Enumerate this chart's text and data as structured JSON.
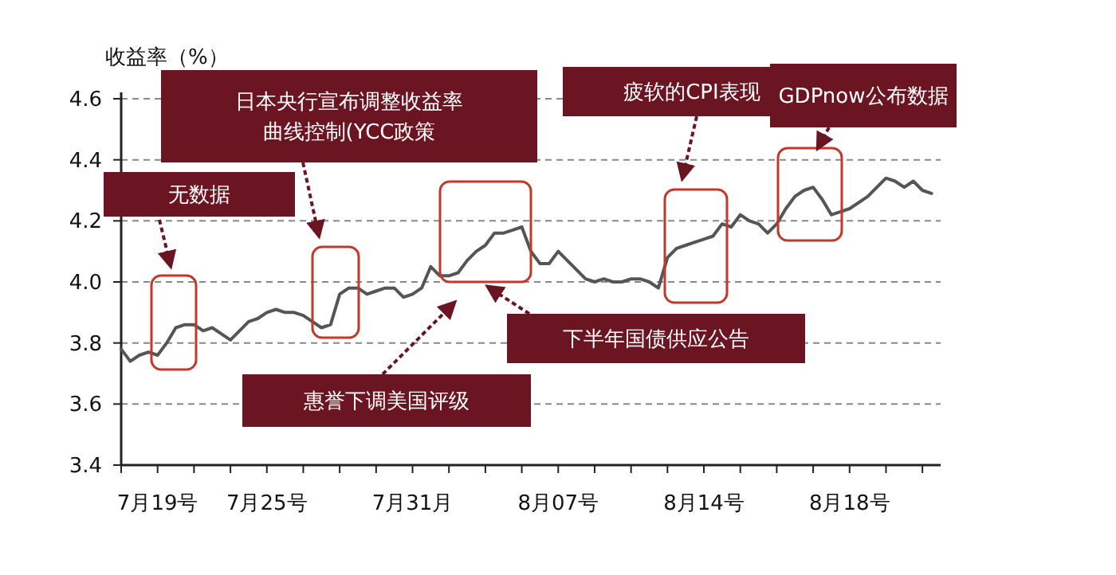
{
  "chart_data": {
    "type": "line",
    "ylabel": "收益率（%）",
    "categories": [
      null,
      null,
      null,
      null,
      "7月19号",
      null,
      null,
      null,
      null,
      null,
      null,
      null,
      null,
      null,
      null,
      null,
      "7月25号",
      null,
      null,
      null,
      null,
      null,
      null,
      null,
      null,
      null,
      null,
      null,
      null,
      null,
      null,
      null,
      "7月31月",
      null,
      null,
      null,
      null,
      null,
      null,
      null,
      null,
      null,
      null,
      null,
      null,
      null,
      null,
      null,
      "8月07号",
      null,
      null,
      null,
      null,
      null,
      null,
      null,
      null,
      null,
      null,
      null,
      null,
      null,
      null,
      null,
      "8月14号",
      null,
      null,
      null,
      null,
      null,
      null,
      null,
      null,
      null,
      null,
      null,
      null,
      null,
      null,
      null,
      "8月18号",
      null,
      null,
      null,
      null,
      null,
      null,
      null,
      null,
      null
    ],
    "series": [
      {
        "color": "#555555",
        "values": [
          3.78,
          3.74,
          3.76,
          3.77,
          3.76,
          3.8,
          3.85,
          3.86,
          3.86,
          3.84,
          3.85,
          3.83,
          3.81,
          3.84,
          3.87,
          3.88,
          3.9,
          3.91,
          3.9,
          3.9,
          3.89,
          3.87,
          3.85,
          3.86,
          3.96,
          3.98,
          3.98,
          3.96,
          3.97,
          3.98,
          3.98,
          3.95,
          3.96,
          3.98,
          4.05,
          4.02,
          4.02,
          4.03,
          4.07,
          4.1,
          4.12,
          4.16,
          4.16,
          4.17,
          4.18,
          4.1,
          4.06,
          4.06,
          4.1,
          4.07,
          4.04,
          4.01,
          4.0,
          4.01,
          4.0,
          4.0,
          4.01,
          4.01,
          4.0,
          3.98,
          4.08,
          4.11,
          4.12,
          4.13,
          4.14,
          4.15,
          4.19,
          4.18,
          4.22,
          4.2,
          4.19,
          4.16,
          4.19,
          4.24,
          4.28,
          4.3,
          4.31,
          4.27,
          4.22,
          4.23,
          4.24,
          4.26,
          4.28,
          4.31,
          4.34,
          4.33,
          4.31,
          4.33,
          4.3,
          4.29
        ]
      }
    ],
    "ylim": [
      3.4,
      4.6
    ],
    "yticks": [
      3.4,
      3.6,
      3.8,
      {
        "value": 4.0,
        "label": "4.0"
      },
      4.2,
      4.4,
      4.6
    ],
    "grid": "y",
    "marker": "none",
    "line_style": "solid",
    "annotations": [
      "无数据",
      "日本央行宣布调整收益率曲线控制(YCC政策",
      "惠誉下调美国评级",
      "下半年国债供应公告",
      "疲软的CPI表现",
      "GDPnow公布数据"
    ]
  }
}
